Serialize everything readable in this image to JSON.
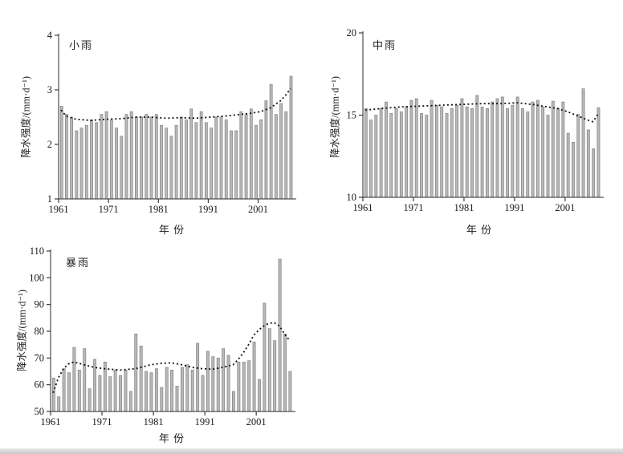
{
  "page": {
    "description_note": "Three bar charts of annual precipitation intensity with dashed trend lines"
  },
  "colors": {
    "bar_fill": "#b8b8b8",
    "bar_stroke": "#828282",
    "axis": "#2b2b2b",
    "trend": "#111111",
    "text": "#1a1a1a",
    "background": "#ffffff"
  },
  "chart_data": [
    {
      "id": "light-rain",
      "type": "bar",
      "title": "小雨",
      "ylabel": "降水强度/(mm·d⁻¹)",
      "xlabel": "年 份",
      "ylim": [
        1,
        4
      ],
      "yticks": [
        1,
        2,
        3,
        4
      ],
      "xticks": [
        1961,
        1971,
        1981,
        1991,
        2001
      ],
      "grid": false,
      "legend": null,
      "years": [
        1961,
        1962,
        1963,
        1964,
        1965,
        1966,
        1967,
        1968,
        1969,
        1970,
        1971,
        1972,
        1973,
        1974,
        1975,
        1976,
        1977,
        1978,
        1979,
        1980,
        1981,
        1982,
        1983,
        1984,
        1985,
        1986,
        1987,
        1988,
        1989,
        1990,
        1991,
        1992,
        1993,
        1994,
        1995,
        1996,
        1997,
        1998,
        1999,
        2000,
        2001,
        2002,
        2003,
        2004,
        2005,
        2006,
        2007
      ],
      "values": [
        2.7,
        2.55,
        2.5,
        2.25,
        2.3,
        2.35,
        2.45,
        2.4,
        2.55,
        2.6,
        2.45,
        2.3,
        2.15,
        2.55,
        2.6,
        2.5,
        2.5,
        2.55,
        2.5,
        2.55,
        2.35,
        2.3,
        2.15,
        2.35,
        2.5,
        2.45,
        2.65,
        2.4,
        2.6,
        2.4,
        2.3,
        2.5,
        2.5,
        2.45,
        2.25,
        2.25,
        2.6,
        2.55,
        2.65,
        2.35,
        2.45,
        2.8,
        3.1,
        2.55,
        2.75,
        2.6,
        3.25
      ],
      "trend_line": {
        "style": "dashed",
        "points": [
          [
            1961,
            2.63
          ],
          [
            1962,
            2.52
          ],
          [
            1964,
            2.46
          ],
          [
            1967,
            2.44
          ],
          [
            1970,
            2.46
          ],
          [
            1973,
            2.47
          ],
          [
            1976,
            2.5
          ],
          [
            1979,
            2.5
          ],
          [
            1982,
            2.48
          ],
          [
            1985,
            2.49
          ],
          [
            1988,
            2.48
          ],
          [
            1991,
            2.5
          ],
          [
            1994,
            2.52
          ],
          [
            1997,
            2.55
          ],
          [
            1999,
            2.57
          ],
          [
            2001,
            2.6
          ],
          [
            2003,
            2.67
          ],
          [
            2005,
            2.8
          ],
          [
            2006,
            2.9
          ],
          [
            2007,
            3.02
          ]
        ]
      }
    },
    {
      "id": "moderate-rain",
      "type": "bar",
      "title": "中雨",
      "ylabel": "降水强度/(mm·d⁻¹)",
      "xlabel": "年 份",
      "ylim": [
        10,
        20
      ],
      "yticks": [
        10,
        15,
        20
      ],
      "xticks": [
        1961,
        1971,
        1981,
        1991,
        2001
      ],
      "grid": false,
      "legend": null,
      "years": [
        1961,
        1962,
        1963,
        1964,
        1965,
        1966,
        1967,
        1968,
        1969,
        1970,
        1971,
        1972,
        1973,
        1974,
        1975,
        1976,
        1977,
        1978,
        1979,
        1980,
        1981,
        1982,
        1983,
        1984,
        1985,
        1986,
        1987,
        1988,
        1989,
        1990,
        1991,
        1992,
        1993,
        1994,
        1995,
        1996,
        1997,
        1998,
        1999,
        2000,
        2001,
        2002,
        2003,
        2004,
        2005,
        2006,
        2007
      ],
      "values": [
        15.4,
        14.7,
        15.0,
        15.4,
        15.8,
        15.1,
        15.4,
        15.2,
        15.5,
        15.9,
        16.0,
        15.1,
        15.0,
        15.9,
        15.6,
        15.5,
        15.1,
        15.4,
        15.6,
        16.0,
        15.5,
        15.4,
        16.2,
        15.5,
        15.4,
        15.8,
        16.0,
        16.1,
        15.4,
        15.6,
        16.1,
        15.4,
        15.2,
        15.8,
        15.9,
        15.5,
        15.0,
        15.85,
        15.4,
        15.8,
        13.9,
        13.35,
        15.05,
        16.6,
        14.1,
        12.95,
        15.45
      ],
      "trend_line": {
        "style": "dashed",
        "points": [
          [
            1961,
            15.3
          ],
          [
            1964,
            15.4
          ],
          [
            1968,
            15.5
          ],
          [
            1972,
            15.55
          ],
          [
            1976,
            15.6
          ],
          [
            1980,
            15.65
          ],
          [
            1984,
            15.7
          ],
          [
            1988,
            15.7
          ],
          [
            1991,
            15.75
          ],
          [
            1994,
            15.65
          ],
          [
            1997,
            15.5
          ],
          [
            1999,
            15.4
          ],
          [
            2001,
            15.2
          ],
          [
            2003,
            14.95
          ],
          [
            2005,
            14.7
          ],
          [
            2006,
            14.6
          ],
          [
            2007,
            15.05
          ]
        ]
      }
    },
    {
      "id": "rainstorm",
      "type": "bar",
      "title": "暴雨",
      "ylabel": "降水强度/(mm·d⁻¹)",
      "xlabel": "年 份",
      "ylim": [
        50,
        110
      ],
      "yticks": [
        50,
        60,
        70,
        80,
        90,
        100,
        110
      ],
      "xticks": [
        1961,
        1971,
        1981,
        1991,
        2001
      ],
      "grid": false,
      "legend": null,
      "years": [
        1961,
        1962,
        1963,
        1964,
        1965,
        1966,
        1967,
        1968,
        1969,
        1970,
        1971,
        1972,
        1973,
        1974,
        1975,
        1976,
        1977,
        1978,
        1979,
        1980,
        1981,
        1982,
        1983,
        1984,
        1985,
        1986,
        1987,
        1988,
        1989,
        1990,
        1991,
        1992,
        1993,
        1994,
        1995,
        1996,
        1997,
        1998,
        1999,
        2000,
        2001,
        2002,
        2003,
        2004,
        2005,
        2006,
        2007
      ],
      "values": [
        62.5,
        55.5,
        66,
        64.5,
        74,
        65.5,
        73.5,
        58.5,
        69.5,
        63.5,
        68.5,
        63,
        65.5,
        63.5,
        65.5,
        57.5,
        79,
        74.5,
        65,
        64.5,
        66,
        59,
        66.5,
        65.5,
        59.5,
        66.5,
        67.5,
        65.5,
        75.5,
        63.5,
        72.5,
        70.5,
        70,
        73.5,
        71,
        57.5,
        68.5,
        68.5,
        69,
        76,
        62,
        90.5,
        81,
        76.5,
        107,
        79,
        65
      ],
      "trend_line": {
        "style": "dashed",
        "points": [
          [
            1961,
            57
          ],
          [
            1962,
            62.5
          ],
          [
            1963,
            66
          ],
          [
            1964,
            67.8
          ],
          [
            1965,
            68.5
          ],
          [
            1967,
            67.5
          ],
          [
            1969,
            66.5
          ],
          [
            1971,
            66
          ],
          [
            1974,
            65.5
          ],
          [
            1977,
            66
          ],
          [
            1980,
            67.5
          ],
          [
            1982,
            68
          ],
          [
            1984,
            68.2
          ],
          [
            1986,
            67.5
          ],
          [
            1988,
            66.5
          ],
          [
            1990,
            66
          ],
          [
            1992,
            65.8
          ],
          [
            1994,
            66.5
          ],
          [
            1996,
            67.5
          ],
          [
            1997,
            69.5
          ],
          [
            1998,
            72
          ],
          [
            1999,
            75
          ],
          [
            2000,
            78.5
          ],
          [
            2001,
            80.5
          ],
          [
            2002,
            82
          ],
          [
            2003,
            83
          ],
          [
            2004,
            83.2
          ],
          [
            2005,
            82
          ],
          [
            2006,
            79
          ],
          [
            2007,
            76.5
          ]
        ]
      }
    }
  ]
}
